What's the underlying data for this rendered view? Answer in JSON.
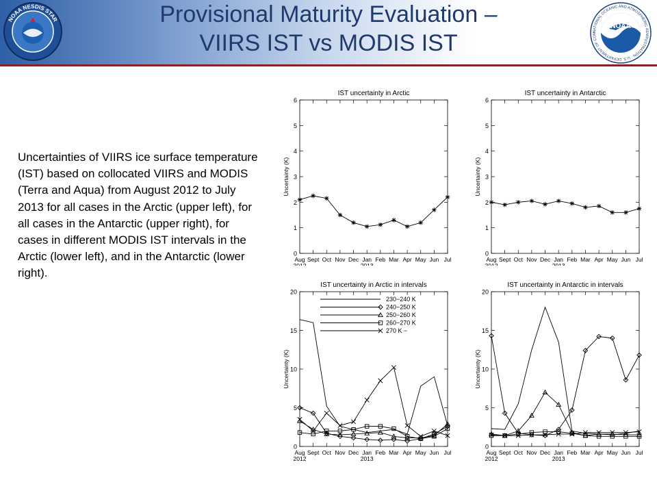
{
  "header": {
    "title_line1": "Provisional Maturity Evaluation –",
    "title_line2": "VIIRS IST vs MODIS IST",
    "left_logo": {
      "icon": "noaa-nesdis-star-seal-icon",
      "text": "NOAA NESDIS STAR"
    },
    "right_logo": {
      "icon": "noaa-seal-icon",
      "text": "NOAA",
      "ring_text": "NATIONAL OCEANIC AND ATMOSPHERIC ADMINISTRATION · U.S. DEPARTMENT OF COMMERCE"
    }
  },
  "caption": "Uncertainties of VIIRS ice surface temperature (IST) based on collocated VIIRS and MODIS (Terra and Aqua) from August 2012 to July 2013 for all cases in the Arctic (upper left), for all cases in the Antarctic (upper right), for cases in different MODIS IST intervals in the Arctic (lower left), and in the Antarctic (lower right).",
  "colors": {
    "title": "#1f3a6b",
    "header_rule": "#8a2323",
    "plot_line": "#000000"
  },
  "chart_data": [
    {
      "type": "line",
      "title": "IST uncertainty in Arctic",
      "ylabel": "Uncertainty (K)",
      "ylim": [
        0,
        6
      ],
      "yticks": [
        "0",
        "1",
        "2",
        "3",
        "4",
        "5",
        "6"
      ],
      "x": [
        "Aug",
        "Sept",
        "Oct",
        "Nov",
        "Dec",
        "Jan",
        "Feb",
        "Mar",
        "Apr",
        "May",
        "Jun",
        "Jul"
      ],
      "year_labels": [
        "2012",
        "2013"
      ],
      "series": [
        {
          "marker": "star",
          "values": [
            2.1,
            2.25,
            2.15,
            1.5,
            1.2,
            1.05,
            1.12,
            1.3,
            1.05,
            1.2,
            1.7,
            2.2
          ]
        }
      ]
    },
    {
      "type": "line",
      "title": "IST uncertainty in Antarctic",
      "ylabel": "Uncertainty (K)",
      "ylim": [
        0,
        6
      ],
      "yticks": [
        "0",
        "1",
        "2",
        "3",
        "4",
        "5",
        "6"
      ],
      "x": [
        "Aug",
        "Sept",
        "Oct",
        "Nov",
        "Dec",
        "Jan",
        "Feb",
        "Mar",
        "Apr",
        "May",
        "Jun",
        "Jul"
      ],
      "year_labels": [
        "2012",
        "2013"
      ],
      "series": [
        {
          "marker": "star",
          "values": [
            2.0,
            1.9,
            2.0,
            2.05,
            1.92,
            2.05,
            1.95,
            1.8,
            1.85,
            1.6,
            1.6,
            1.75
          ]
        }
      ]
    },
    {
      "type": "line",
      "title": "IST uncertainty in Arctic in intervals",
      "ylabel": "Uncertainty (K)",
      "ylim": [
        0,
        20
      ],
      "yticks": [
        "0",
        "5",
        "10",
        "15",
        "20"
      ],
      "x": [
        "Aug",
        "Sept",
        "Oct",
        "Nov",
        "Dec",
        "Jan",
        "Feb",
        "Mar",
        "Apr",
        "May",
        "Jun",
        "Jul"
      ],
      "year_labels": [
        "2012",
        "2013"
      ],
      "legend_position": "top",
      "series": [
        {
          "name": "230−240 K",
          "marker": "none",
          "values": [
            16.4,
            16.0,
            5.2,
            2.6,
            2.2,
            1.8,
            2.0,
            2.2,
            1.6,
            7.8,
            9.0,
            2.7
          ]
        },
        {
          "name": "240−250 K",
          "marker": "diamond",
          "values": [
            5.0,
            4.3,
            1.7,
            1.3,
            1.1,
            0.9,
            0.8,
            0.9,
            0.7,
            1.0,
            1.6,
            2.6
          ]
        },
        {
          "name": "250−260 K",
          "marker": "triangle",
          "values": [
            3.3,
            2.2,
            1.6,
            1.5,
            1.6,
            1.7,
            1.8,
            1.3,
            1.1,
            1.1,
            1.4,
            2.9
          ]
        },
        {
          "name": "260−270 K",
          "marker": "square",
          "values": [
            1.8,
            1.6,
            2.0,
            2.0,
            2.2,
            2.6,
            2.6,
            2.3,
            1.3,
            1.0,
            1.3,
            2.3
          ]
        },
        {
          "name": "270 K −",
          "marker": "x",
          "values": [
            3.5,
            2.0,
            4.3,
            2.7,
            3.2,
            6.0,
            8.5,
            10.2,
            2.7,
            1.3,
            2.0,
            1.4
          ]
        }
      ]
    },
    {
      "type": "line",
      "title": "IST uncertainty in Antarctic in intervals",
      "ylabel": "Uncertainty (K)",
      "ylim": [
        0,
        20
      ],
      "yticks": [
        "0",
        "5",
        "10",
        "15",
        "20"
      ],
      "x": [
        "Aug",
        "Sept",
        "Oct",
        "Nov",
        "Dec",
        "Jan",
        "Feb",
        "Mar",
        "Apr",
        "May",
        "Jun",
        "Jul"
      ],
      "year_labels": [
        "2012",
        "2013"
      ],
      "series": [
        {
          "name": "230−240 K",
          "marker": "none",
          "values": [
            2.3,
            2.2,
            5.5,
            12.5,
            18.0,
            13.5,
            2.0,
            1.7,
            1.6,
            1.5,
            1.7,
            2.0
          ]
        },
        {
          "name": "240−250 K",
          "marker": "diamond",
          "values": [
            14.3,
            4.3,
            1.7,
            1.5,
            1.4,
            2.2,
            4.7,
            12.4,
            14.2,
            14.0,
            8.6,
            11.8
          ]
        },
        {
          "name": "250−260 K",
          "marker": "triangle",
          "values": [
            1.6,
            1.4,
            2.0,
            4.0,
            7.0,
            5.4,
            1.8,
            1.4,
            1.6,
            1.6,
            1.5,
            1.5
          ]
        },
        {
          "name": "260−270 K",
          "marker": "square",
          "values": [
            1.4,
            1.4,
            1.6,
            1.8,
            1.9,
            1.9,
            1.7,
            1.4,
            1.3,
            1.3,
            1.3,
            1.3
          ]
        },
        {
          "name": "270 K −",
          "marker": "x",
          "values": [
            1.5,
            1.4,
            1.4,
            1.5,
            1.5,
            1.6,
            1.6,
            1.8,
            1.8,
            1.8,
            1.8,
            1.9
          ]
        }
      ]
    }
  ]
}
